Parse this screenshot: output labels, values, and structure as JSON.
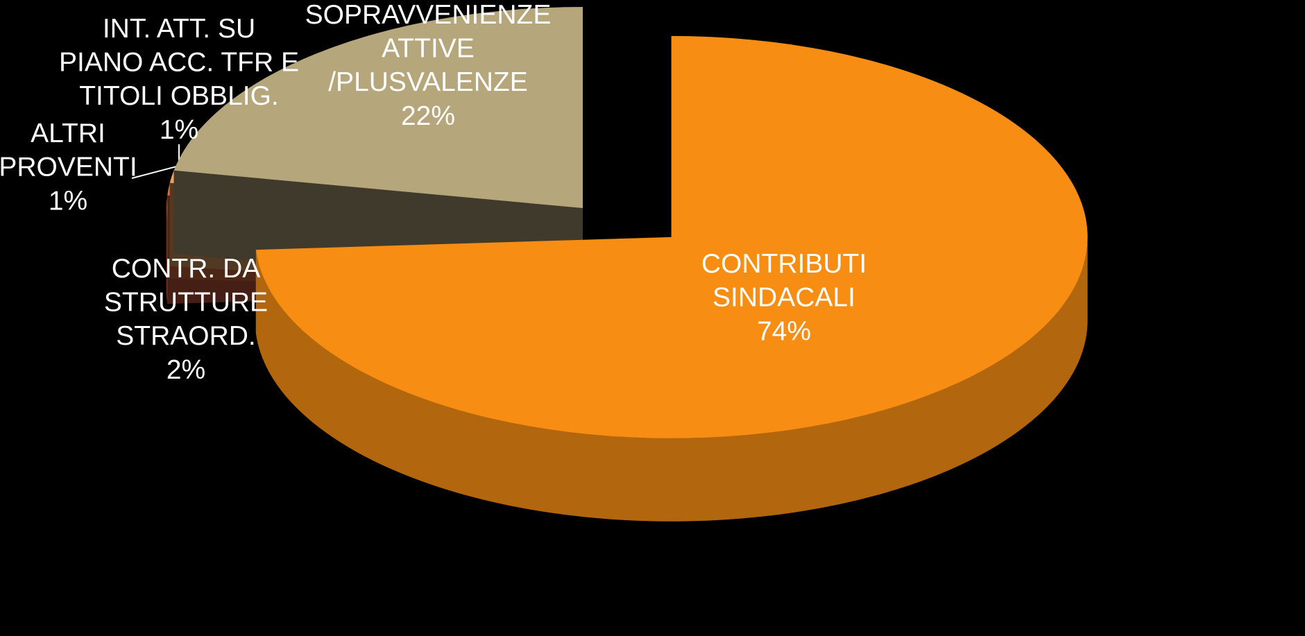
{
  "chart_data": {
    "type": "pie",
    "categories": [
      "CONTRIBUTI\nSINDACALI",
      "CONTR. DA\nSTRUTTURE\nSTRAORD.",
      "ALTRI\nPROVENTI",
      "INT. ATT. SU\nPIANO ACC. TFR E\nTITOLI OBBLIG.",
      "SOPRAVVENIENZE\nATTIVE\n/PLUSVALENZE"
    ],
    "values": [
      74,
      2,
      1,
      1,
      22
    ],
    "value_labels": [
      "74%",
      "2%",
      "1%",
      "1%",
      "22%"
    ],
    "colors": [
      "#f78d12",
      "#c4553d",
      "#d9703f",
      "#e6a267",
      "#b5a67c"
    ]
  }
}
